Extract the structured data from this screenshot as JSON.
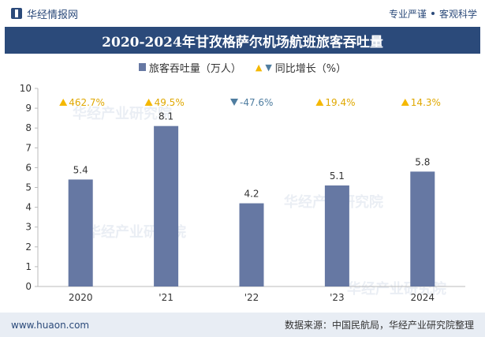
{
  "header": {
    "brand": "华经情报网",
    "tagline_left": "专业严谨",
    "tagline_right": "客观科学"
  },
  "title": "2020-2024年甘孜格萨尔机场航班旅客吞吐量",
  "legend": {
    "bar_label": "旅客吞吐量（万人）",
    "growth_label": "同比增长（%）"
  },
  "watermark": "华经产业研究院",
  "colors": {
    "bar": "#6678a3",
    "up": "#f5b800",
    "down": "#4f7da0",
    "header": "#2b4a7a"
  },
  "chart_data": {
    "type": "bar",
    "categories": [
      "2020",
      "'21",
      "'22",
      "'23",
      "2024"
    ],
    "series": [
      {
        "name": "旅客吞吐量（万人）",
        "values": [
          5.4,
          8.1,
          4.2,
          5.1,
          5.8
        ]
      }
    ],
    "growth": [
      {
        "label": "462.7%",
        "direction": "up"
      },
      {
        "label": "49.5%",
        "direction": "up"
      },
      {
        "label": "-47.6%",
        "direction": "down"
      },
      {
        "label": "19.4%",
        "direction": "up"
      },
      {
        "label": "14.3%",
        "direction": "up"
      }
    ],
    "ylim": [
      0,
      10
    ],
    "yticks": [
      0,
      1,
      2,
      3,
      4,
      5,
      6,
      7,
      8,
      9,
      10
    ],
    "legend_position": "top-center"
  },
  "footer": {
    "website": "www.huaon.com",
    "source": "数据来源：中国民航局，华经产业研究院整理"
  }
}
